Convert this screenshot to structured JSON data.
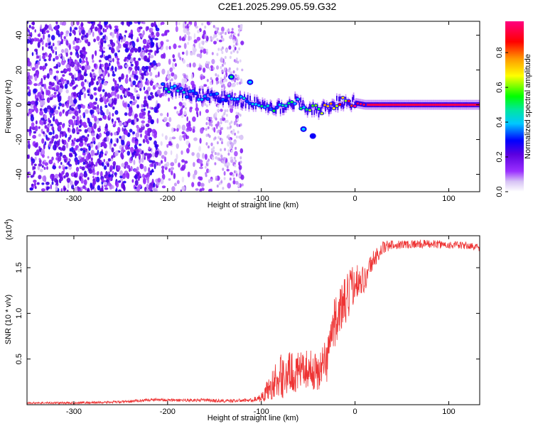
{
  "figure": {
    "title": "C2E1.2025.299.05.59.G32"
  },
  "chart_data": [
    {
      "type": "heatmap",
      "xlabel": "Height of straight line (km)",
      "ylabel": "Frequency (Hz)",
      "xlim": [
        -350,
        133
      ],
      "ylim": [
        -50,
        48
      ],
      "xticks": [
        -300,
        -200,
        -100,
        0,
        100
      ],
      "yticks": [
        -40,
        -20,
        0,
        20,
        40
      ],
      "colorbar": {
        "label": "Normalized spectral amplitude",
        "range": [
          0,
          0.98
        ],
        "ticks": [
          0.0,
          0.2,
          0.4,
          0.6,
          0.8
        ],
        "colormap": [
          "#ffffff",
          "#d7c3f5",
          "#9b30ff",
          "#5a00e0",
          "#0000ff",
          "#00c8ff",
          "#00e6a0",
          "#00ff00",
          "#ffff00",
          "#ff9900",
          "#ff0000",
          "#ff0080"
        ]
      },
      "signal_track": [
        {
          "x": -205,
          "y": 10,
          "amp": 0.45
        },
        {
          "x": -190,
          "y": 8,
          "amp": 0.5
        },
        {
          "x": -175,
          "y": 6,
          "amp": 0.4
        },
        {
          "x": -160,
          "y": 5,
          "amp": 0.45
        },
        {
          "x": -140,
          "y": 4,
          "amp": 0.4
        },
        {
          "x": -120,
          "y": 2,
          "amp": 0.45
        },
        {
          "x": -100,
          "y": 0,
          "amp": 0.5
        },
        {
          "x": -80,
          "y": -2,
          "amp": 0.5
        },
        {
          "x": -65,
          "y": 2,
          "amp": 0.55
        },
        {
          "x": -50,
          "y": -2,
          "amp": 0.6
        },
        {
          "x": -40,
          "y": -3,
          "amp": 0.7
        },
        {
          "x": -30,
          "y": -2,
          "amp": 0.8
        },
        {
          "x": -20,
          "y": 1,
          "amp": 0.85
        },
        {
          "x": -10,
          "y": 2,
          "amp": 0.9
        },
        {
          "x": 0,
          "y": 1,
          "amp": 0.95
        },
        {
          "x": 10,
          "y": 0,
          "amp": 0.95
        },
        {
          "x": 60,
          "y": 0,
          "amp": 0.95
        },
        {
          "x": 133,
          "y": 0,
          "amp": 0.95
        }
      ],
      "outliers": [
        {
          "x": -132,
          "y": 16,
          "amp": 0.5
        },
        {
          "x": -112,
          "y": 13,
          "amp": 0.4
        },
        {
          "x": -55,
          "y": -14,
          "amp": 0.4
        },
        {
          "x": -45,
          "y": -18,
          "amp": 0.3
        }
      ]
    },
    {
      "type": "line",
      "xlabel": "Height of straight line (km)",
      "ylabel": "SNR (10 * v/v)",
      "y_multiplier": "(x10",
      "y_multiplier_exp": "4",
      "y_multiplier_close": ")",
      "xlim": [
        -350,
        133
      ],
      "ylim": [
        0,
        1.85
      ],
      "xticks": [
        -300,
        -200,
        -100,
        0,
        100
      ],
      "yticks": [
        0.5,
        1.0,
        1.5
      ],
      "grid": false,
      "series": [
        {
          "color": "#ee3333",
          "points": [
            [
              -350,
              0.02
            ],
            [
              -300,
              0.02
            ],
            [
              -250,
              0.03
            ],
            [
              -210,
              0.06
            ],
            [
              -200,
              0.05
            ],
            [
              -160,
              0.05
            ],
            [
              -140,
              0.04
            ],
            [
              -110,
              0.05
            ],
            [
              -100,
              0.08
            ],
            [
              -90,
              0.2
            ],
            [
              -80,
              0.3
            ],
            [
              -70,
              0.35
            ],
            [
              -60,
              0.35
            ],
            [
              -50,
              0.4
            ],
            [
              -40,
              0.35
            ],
            [
              -30,
              0.5
            ],
            [
              -25,
              0.8
            ],
            [
              -20,
              0.95
            ],
            [
              -15,
              1.05
            ],
            [
              -10,
              1.1
            ],
            [
              -5,
              1.25
            ],
            [
              0,
              1.35
            ],
            [
              5,
              1.4
            ],
            [
              10,
              1.35
            ],
            [
              15,
              1.5
            ],
            [
              20,
              1.6
            ],
            [
              25,
              1.65
            ],
            [
              30,
              1.72
            ],
            [
              40,
              1.75
            ],
            [
              60,
              1.76
            ],
            [
              80,
              1.76
            ],
            [
              100,
              1.75
            ],
            [
              120,
              1.74
            ],
            [
              133,
              1.72
            ]
          ],
          "noise": [
            [
              -350,
              0.01
            ],
            [
              -110,
              0.02
            ],
            [
              -100,
              0.05
            ],
            [
              -80,
              0.25
            ],
            [
              -50,
              0.2
            ],
            [
              -30,
              0.25
            ],
            [
              -10,
              0.3
            ],
            [
              0,
              0.2
            ],
            [
              20,
              0.1
            ],
            [
              40,
              0.05
            ],
            [
              133,
              0.04
            ]
          ]
        }
      ]
    }
  ]
}
